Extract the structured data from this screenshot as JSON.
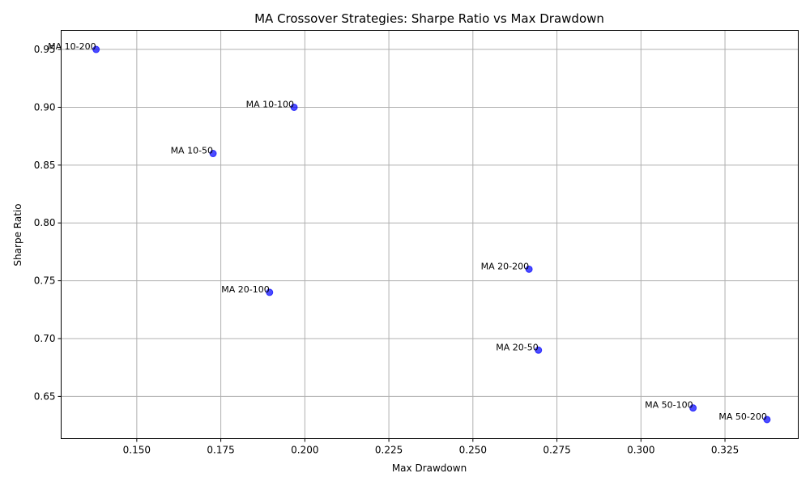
{
  "chart_data": {
    "type": "scatter",
    "title": "MA Crossover Strategies: Sharpe Ratio vs Max Drawdown",
    "xlabel": "Max Drawdown",
    "ylabel": "Sharpe Ratio",
    "xlim": [
      0.1275,
      0.3468
    ],
    "ylim": [
      0.6135,
      0.9665
    ],
    "xticks": [
      0.15,
      0.175,
      0.2,
      0.225,
      0.25,
      0.275,
      0.3,
      0.325
    ],
    "xtick_labels": [
      "0.150",
      "0.175",
      "0.200",
      "0.225",
      "0.250",
      "0.275",
      "0.300",
      "0.325"
    ],
    "yticks": [
      0.65,
      0.7,
      0.75,
      0.8,
      0.85,
      0.9,
      0.95
    ],
    "ytick_labels": [
      "0.65",
      "0.70",
      "0.75",
      "0.80",
      "0.85",
      "0.90",
      "0.95"
    ],
    "grid": true,
    "marker_color": "#0000ff",
    "marker_alpha": 0.7,
    "points": [
      {
        "label": "MA 10-50",
        "x": 0.1727,
        "y": 0.86
      },
      {
        "label": "MA 10-100",
        "x": 0.1968,
        "y": 0.9
      },
      {
        "label": "MA 10-200",
        "x": 0.1379,
        "y": 0.95
      },
      {
        "label": "MA 20-50",
        "x": 0.2695,
        "y": 0.69
      },
      {
        "label": "MA 20-100",
        "x": 0.1895,
        "y": 0.74
      },
      {
        "label": "MA 20-200",
        "x": 0.2667,
        "y": 0.76
      },
      {
        "label": "MA 50-100",
        "x": 0.3155,
        "y": 0.64
      },
      {
        "label": "MA 50-200",
        "x": 0.3375,
        "y": 0.63
      }
    ]
  }
}
